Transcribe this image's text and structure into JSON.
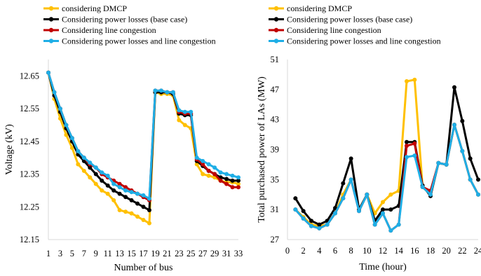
{
  "chart_data": [
    {
      "type": "line",
      "xlabel": "Number of bus",
      "ylabel": "Voltage (kV)",
      "xlim": [
        1,
        33
      ],
      "ylim": [
        12.15,
        12.7
      ],
      "xticks": [
        "1",
        "3",
        "5",
        "7",
        "9",
        "11",
        "13",
        "15",
        "17",
        "19",
        "21",
        "23",
        "25",
        "27",
        "29",
        "31",
        "33"
      ],
      "yticks": [
        "12.15",
        "12.25",
        "12.35",
        "12.45",
        "12.55",
        "12.65"
      ],
      "legend_position": "top",
      "x": [
        1,
        2,
        3,
        4,
        5,
        6,
        7,
        8,
        9,
        10,
        11,
        12,
        13,
        14,
        15,
        16,
        17,
        18,
        19,
        20,
        21,
        22,
        23,
        24,
        25,
        26,
        27,
        28,
        29,
        30,
        31,
        32,
        33
      ],
      "series": [
        {
          "name": "considering DMCP",
          "color": "#FFC000",
          "values": [
            12.66,
            12.58,
            12.52,
            12.47,
            12.43,
            12.38,
            12.36,
            12.34,
            12.32,
            12.3,
            12.29,
            12.27,
            12.24,
            12.235,
            12.23,
            12.22,
            12.21,
            12.2,
            12.6,
            12.595,
            12.595,
            12.59,
            12.515,
            12.5,
            12.49,
            12.38,
            12.35,
            12.345,
            12.34,
            12.33,
            12.325,
            12.325,
            12.32
          ]
        },
        {
          "name": "Considering power losses (base case)",
          "color": "#000000",
          "values": [
            12.66,
            12.59,
            12.54,
            12.49,
            12.45,
            12.41,
            12.39,
            12.37,
            12.35,
            12.33,
            12.315,
            12.3,
            12.29,
            12.28,
            12.27,
            12.26,
            12.25,
            12.24,
            12.6,
            12.6,
            12.6,
            12.595,
            12.535,
            12.53,
            12.53,
            12.39,
            12.375,
            12.36,
            12.35,
            12.34,
            12.335,
            12.33,
            12.33
          ]
        },
        {
          "name": "Considering line congestion",
          "color": "#C00000",
          "values": [
            12.66,
            12.6,
            12.55,
            12.5,
            12.46,
            12.42,
            12.4,
            12.38,
            12.37,
            12.35,
            12.34,
            12.33,
            12.32,
            12.31,
            12.3,
            12.29,
            12.28,
            12.27,
            12.605,
            12.605,
            12.6,
            12.6,
            12.54,
            12.535,
            12.535,
            12.395,
            12.38,
            12.36,
            12.35,
            12.33,
            12.32,
            12.31,
            12.31
          ]
        },
        {
          "name": "Considering power losses and line congestion",
          "color": "#1EAEE6",
          "values": [
            12.66,
            12.6,
            12.55,
            12.5,
            12.46,
            12.42,
            12.4,
            12.385,
            12.37,
            12.355,
            12.345,
            12.32,
            12.31,
            12.3,
            12.295,
            12.29,
            12.285,
            12.275,
            12.605,
            12.605,
            12.6,
            12.6,
            12.545,
            12.54,
            12.54,
            12.4,
            12.39,
            12.38,
            12.37,
            12.355,
            12.35,
            12.345,
            12.34
          ]
        }
      ]
    },
    {
      "type": "line",
      "xlabel": "Time (hour)",
      "ylabel": "Total purchased power of LAs (MW)",
      "xlim": [
        0,
        24
      ],
      "ylim": [
        27,
        51
      ],
      "xticks": [
        "0",
        "2",
        "4",
        "6",
        "8",
        "10",
        "12",
        "14",
        "16",
        "18",
        "20",
        "22",
        "24"
      ],
      "yticks": [
        "27",
        "31",
        "35",
        "39",
        "43",
        "47",
        "51"
      ],
      "legend_position": "top",
      "x": [
        1,
        2,
        3,
        4,
        5,
        6,
        7,
        8,
        9,
        10,
        11,
        12,
        13,
        14,
        15,
        16,
        17,
        18,
        19,
        20,
        21,
        22,
        23,
        24
      ],
      "series": [
        {
          "name": "considering DMCP",
          "color": "#FFC000",
          "values": [
            31,
            30,
            29,
            28.8,
            29,
            30.5,
            33,
            35,
            31,
            33,
            30.5,
            32,
            33,
            33.5,
            48.1,
            48.3,
            34,
            33,
            37.2,
            37,
            42.3,
            38.8,
            35,
            33
          ]
        },
        {
          "name": "Considering power losses (base case)",
          "color": "#000000",
          "values": [
            32.5,
            30.8,
            29.5,
            29,
            29.5,
            31.2,
            34.5,
            37.8,
            31,
            33,
            29.5,
            31,
            31,
            31.5,
            40,
            40,
            34.2,
            32.8,
            37.2,
            37,
            47.3,
            42.8,
            37.8,
            35
          ]
        },
        {
          "name": "Considering line congestion",
          "color": "#C00000",
          "values": [
            31,
            29.8,
            28.8,
            28.5,
            29,
            30.5,
            32.5,
            35,
            30.8,
            33,
            29,
            30.5,
            28.2,
            29,
            39.5,
            39.8,
            34,
            33.5,
            37.2,
            37,
            42.3,
            38.8,
            35,
            33
          ]
        },
        {
          "name": "Considering power losses and line congestion",
          "color": "#1EAEE6",
          "values": [
            31,
            29.8,
            28.8,
            28.5,
            29,
            30.5,
            32.5,
            35,
            30.8,
            33,
            29,
            30.5,
            28.2,
            29,
            38,
            38.2,
            34,
            33,
            37.2,
            37,
            42.3,
            38.8,
            35,
            33
          ]
        }
      ]
    }
  ]
}
